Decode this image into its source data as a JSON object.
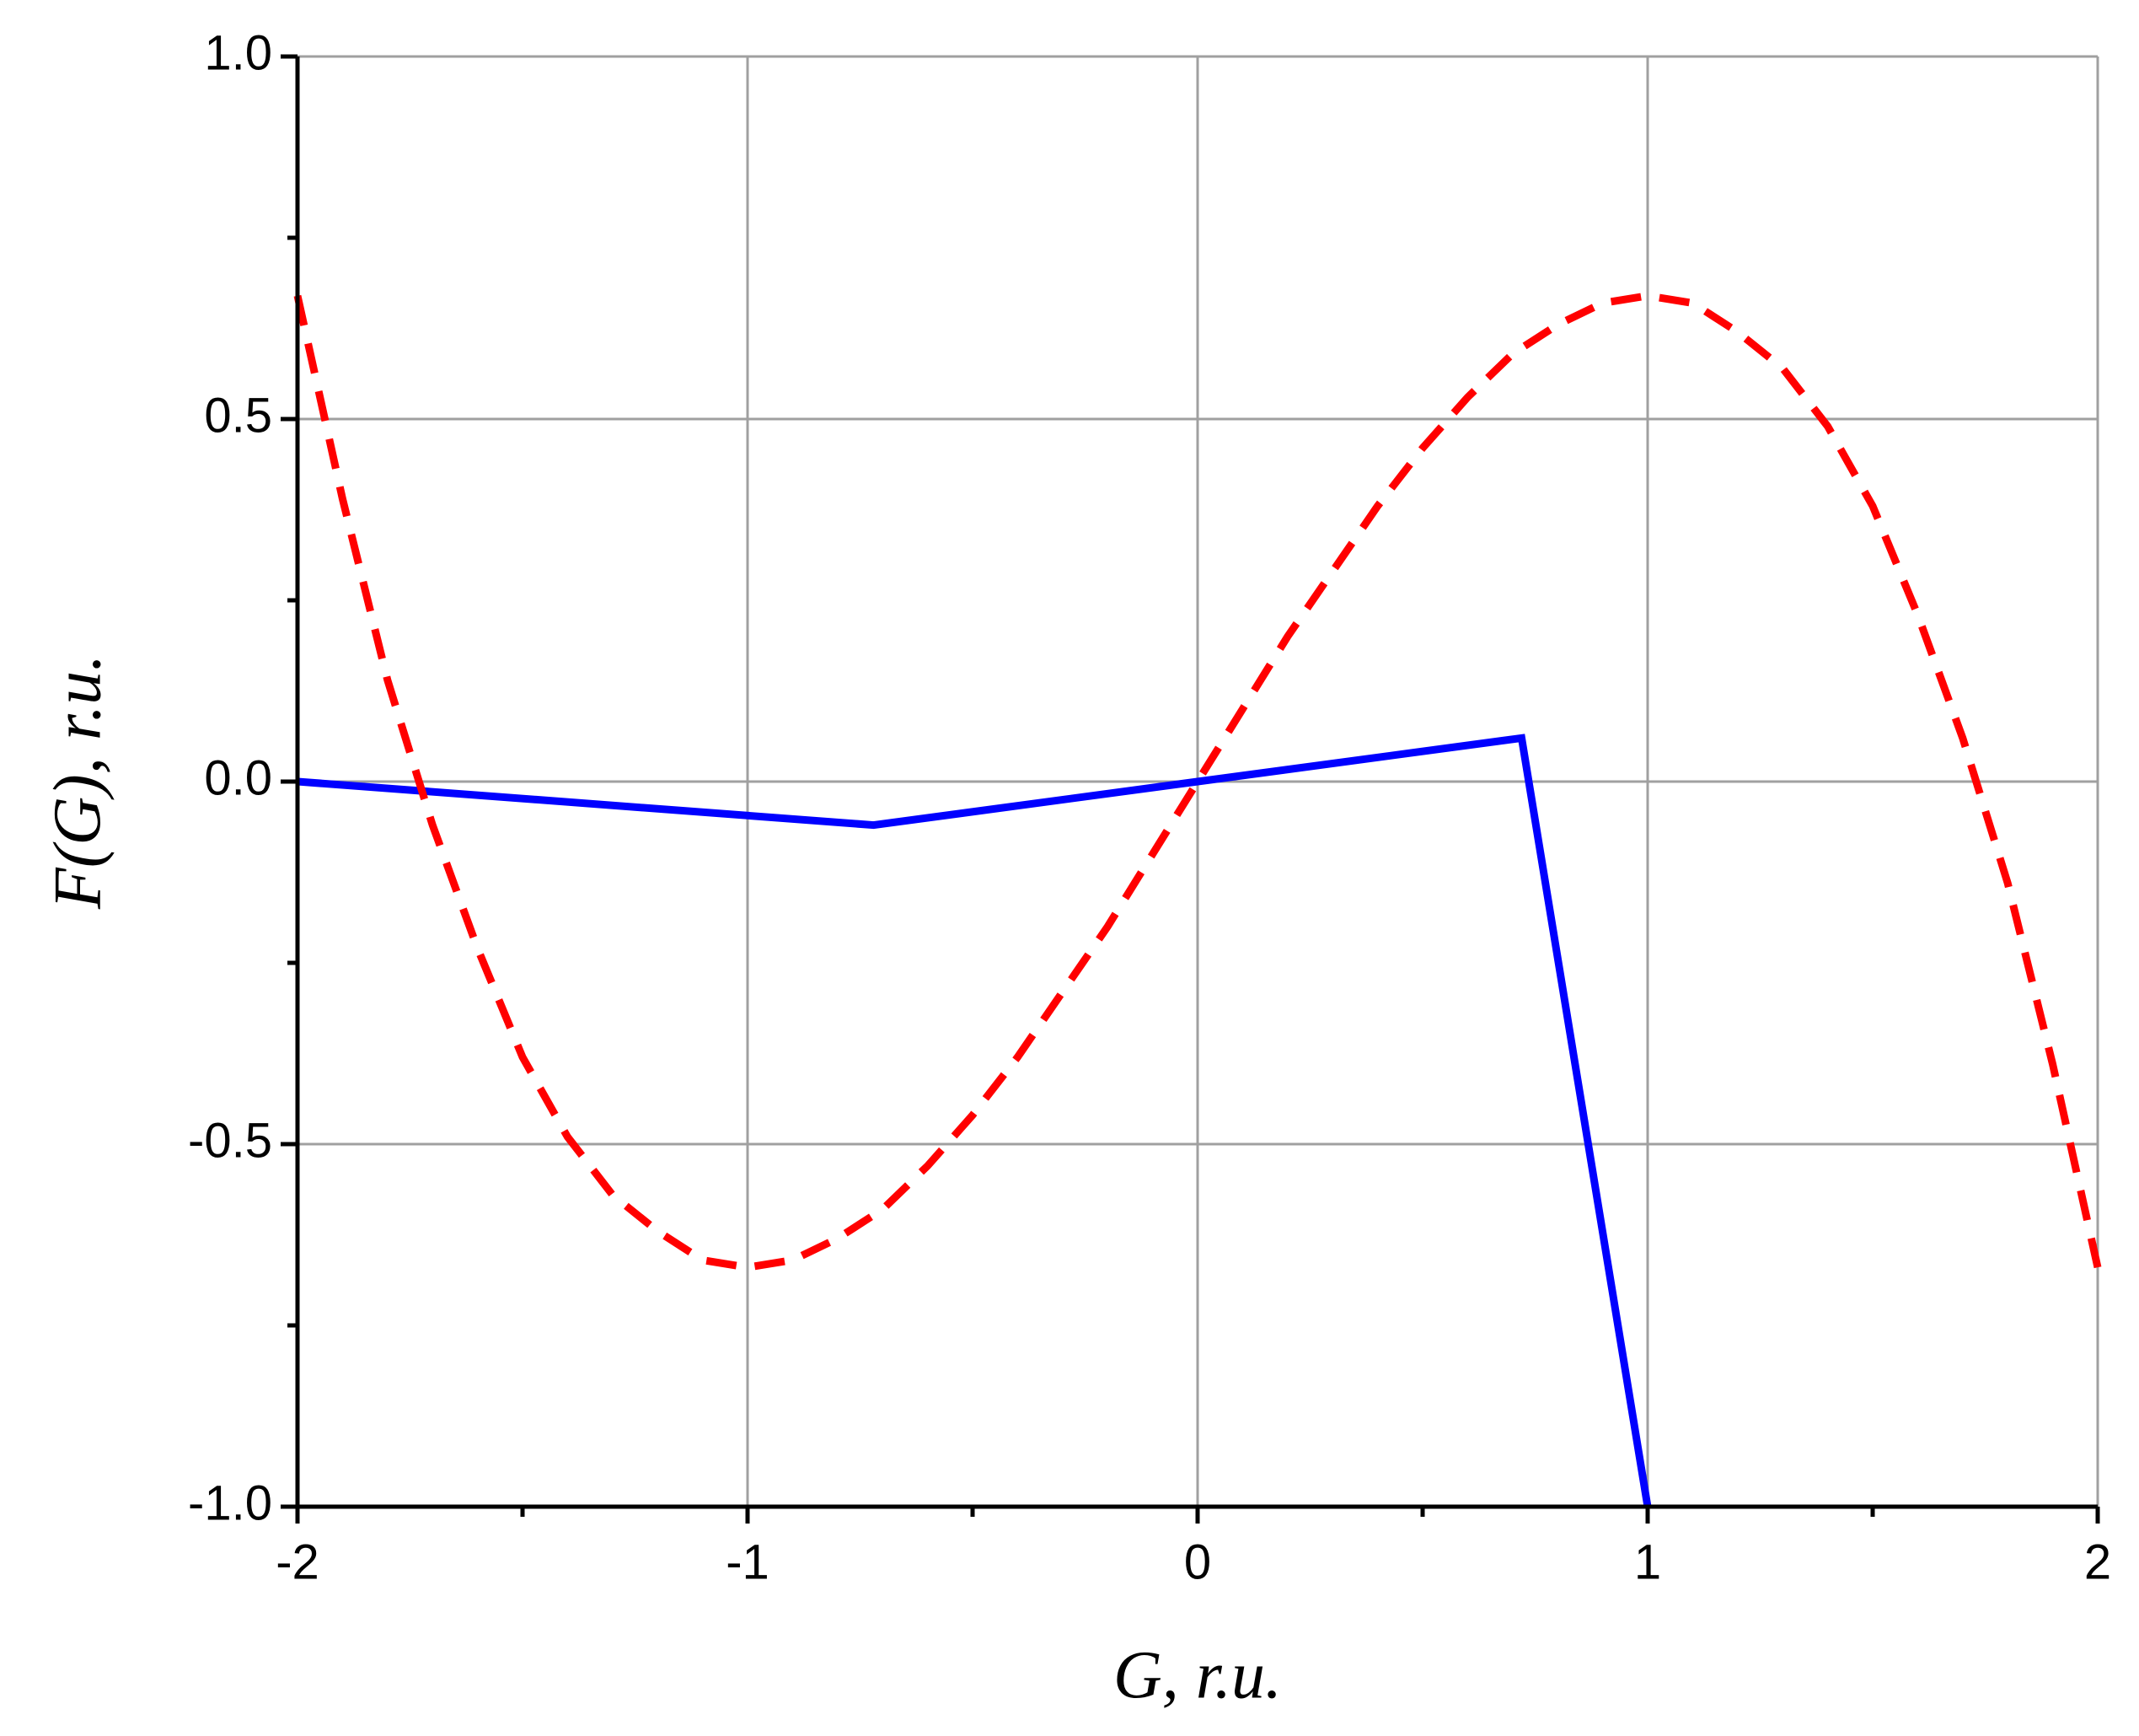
{
  "chart_data": {
    "type": "line",
    "xlabel": "G, r.u.",
    "ylabel": "F(G), r.u.",
    "xlim": [
      -2,
      2
    ],
    "ylim": [
      -1,
      1
    ],
    "xticks": [
      -2,
      -1,
      0,
      1,
      2
    ],
    "yticks": [
      {
        "value": -1,
        "label": "-1.0"
      },
      -0.5,
      {
        "value": 0,
        "label": "0.0"
      },
      0.5,
      {
        "value": 1,
        "label": "1.0"
      }
    ],
    "x_minor_ticks": [
      -1.5,
      -0.5,
      0.5,
      1.5
    ],
    "y_minor_ticks": [
      -0.75,
      -0.25,
      0.25,
      0.75
    ],
    "grid": true,
    "series": [
      {
        "color": "#0000ff",
        "dash": false,
        "x": [
          -2,
          -0.72,
          0,
          0.72,
          1
        ],
        "values": [
          0,
          -0.06,
          0,
          0.06,
          -1
        ]
      },
      {
        "color": "#ff0000",
        "dash": true,
        "x": [
          -2,
          -1.9,
          -1.8,
          -1.7,
          -1.6,
          -1.5,
          -1.4,
          -1.3,
          -1.2,
          -1.1,
          -1,
          -0.9,
          -0.8,
          -0.7,
          -0.6,
          -0.5,
          -0.4,
          -0.3,
          -0.2,
          -0.1,
          0,
          0.1,
          0.2,
          0.3,
          0.4,
          0.5,
          0.6,
          0.7,
          0.8,
          0.9,
          1,
          1.1,
          1.2,
          1.3,
          1.4,
          1.5,
          1.6,
          1.7,
          1.8,
          1.9,
          2
        ],
        "values": [
          0.67,
          0.39,
          0.14,
          -0.06,
          -0.23,
          -0.38,
          -0.49,
          -0.57,
          -0.62,
          -0.66,
          -0.67,
          -0.66,
          -0.63,
          -0.59,
          -0.53,
          -0.46,
          -0.38,
          -0.29,
          -0.2,
          -0.1,
          0,
          0.1,
          0.2,
          0.29,
          0.38,
          0.46,
          0.53,
          0.59,
          0.63,
          0.66,
          0.67,
          0.66,
          0.62,
          0.57,
          0.49,
          0.38,
          0.23,
          0.06,
          -0.14,
          -0.39,
          -0.67
        ]
      }
    ]
  }
}
